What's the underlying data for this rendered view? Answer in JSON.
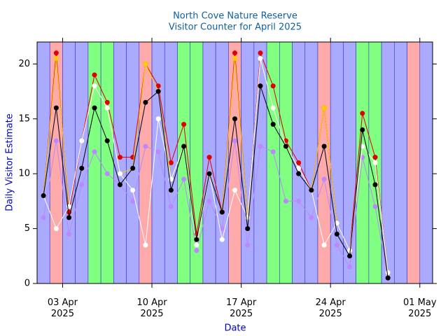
{
  "chart_data": {
    "type": "line",
    "title": "North Cove Nature Reserve",
    "subtitle": "Visitor Counter for April 2025",
    "x_label": "Date",
    "y_label": "Daily Visitor Estimate",
    "x": [
      "2025-04-01",
      "2025-04-02",
      "2025-04-03",
      "2025-04-04",
      "2025-04-05",
      "2025-04-06",
      "2025-04-07",
      "2025-04-08",
      "2025-04-09",
      "2025-04-10",
      "2025-04-11",
      "2025-04-12",
      "2025-04-13",
      "2025-04-14",
      "2025-04-15",
      "2025-04-16",
      "2025-04-17",
      "2025-04-18",
      "2025-04-19",
      "2025-04-20",
      "2025-04-21",
      "2025-04-22",
      "2025-04-23",
      "2025-04-24",
      "2025-04-25",
      "2025-04-26",
      "2025-04-27",
      "2025-04-28"
    ],
    "series": [
      {
        "color": "#bb88ff",
        "values": [
          6,
          13,
          4.5,
          9,
          12,
          10,
          9,
          7.5,
          12.5,
          12,
          7,
          9.5,
          3,
          7.5,
          5,
          13,
          3.5,
          12.5,
          12,
          7.5,
          7.5,
          6,
          9.5,
          3.5,
          1.5,
          11.5,
          7,
          0.5
        ]
      },
      {
        "color": "#e00000",
        "values": [
          8,
          21,
          6.5,
          13,
          19,
          16.5,
          11.5,
          11.5,
          20,
          18,
          11,
          14.5,
          4.5,
          11.5,
          6.5,
          21,
          6,
          21,
          18,
          13,
          11,
          8.5,
          16,
          5.5,
          3,
          15.5,
          11.5,
          1
        ]
      },
      {
        "color": "#ffcc00",
        "values": [
          8,
          20.5,
          7,
          13,
          18,
          16,
          10,
          10.5,
          20,
          17.5,
          9.5,
          12.5,
          4,
          10,
          6.5,
          20.5,
          6,
          20.5,
          16,
          12.5,
          10.5,
          8.5,
          16,
          5.5,
          3,
          12.5,
          11,
          1
        ]
      },
      {
        "color": "#ffffff",
        "values": [
          8,
          5,
          7,
          13,
          18,
          16,
          10,
          8.5,
          3.5,
          15,
          9.5,
          12.5,
          3.5,
          10,
          4,
          8.5,
          6,
          20.5,
          16,
          12.5,
          10.5,
          8.5,
          3.5,
          5.5,
          3,
          12.5,
          11,
          1
        ]
      },
      {
        "color": "#000000",
        "values": [
          8,
          16,
          6,
          10.5,
          16,
          13,
          9,
          10.5,
          16.5,
          17.5,
          8.5,
          12.5,
          4,
          10,
          6.5,
          15,
          5,
          18,
          14.5,
          12.5,
          10,
          8.5,
          12.5,
          4.5,
          2.5,
          14,
          9,
          0.5
        ]
      }
    ],
    "bands": [
      "#aaaaff",
      "#ffaaaa",
      "#aaaaff",
      "#aaaaff",
      "#80ff80",
      "#80ff80",
      "#aaaaff",
      "#aaaaff",
      "#ffaaaa",
      "#aaaaff",
      "#aaaaff",
      "#80ff80",
      "#80ff80",
      "#aaaaff",
      "#aaaaff",
      "#ffaaaa",
      "#aaaaff",
      "#aaaaff",
      "#80ff80",
      "#80ff80",
      "#aaaaff",
      "#aaaaff",
      "#ffaaaa",
      "#aaaaff",
      "#aaaaff",
      "#80ff80",
      "#80ff80",
      "#aaaaff",
      "#aaaaff",
      "#ffaaaa",
      "#aaaaff"
    ],
    "xlim": [
      "2025-04-01",
      "2025-05-02"
    ],
    "xticks": [
      {
        "value": "2025-04-03",
        "label": "03 Apr\n2025"
      },
      {
        "value": "2025-04-10",
        "label": "10 Apr\n2025"
      },
      {
        "value": "2025-04-17",
        "label": "17 Apr\n2025"
      },
      {
        "value": "2025-04-24",
        "label": "24 Apr\n2025"
      },
      {
        "value": "2025-05-01",
        "label": "01 May\n2025"
      }
    ],
    "ylim": [
      0,
      22
    ],
    "yticks": [
      0,
      5,
      10,
      15,
      20
    ]
  }
}
